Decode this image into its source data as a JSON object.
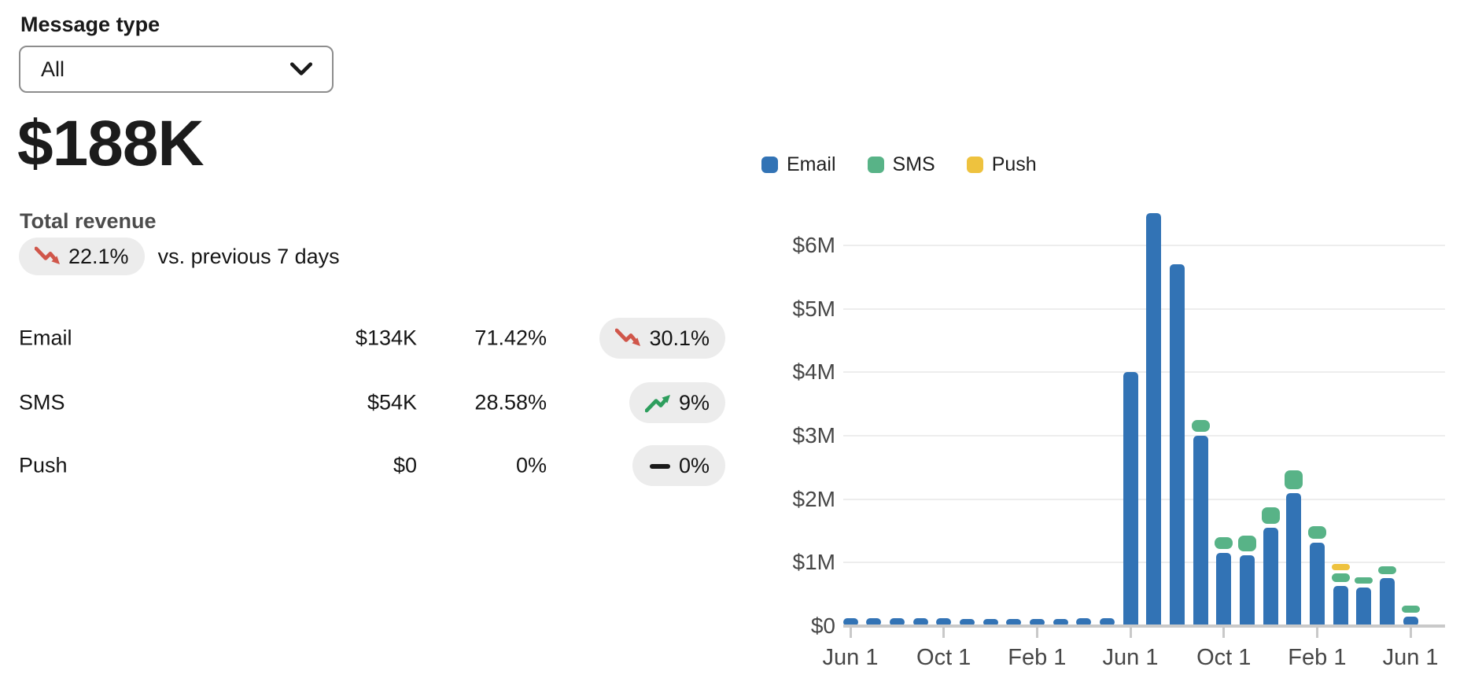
{
  "filter": {
    "label": "Message type",
    "value": "All"
  },
  "summary": {
    "total_value": "$188K",
    "total_label": "Total revenue",
    "change_badge": {
      "value": "22.1%",
      "direction": "down"
    },
    "comparison_text": "vs. previous 7 days"
  },
  "breakdown": {
    "rows": [
      {
        "label": "Email",
        "value": "$134K",
        "share": "71.42%",
        "change": "30.1%",
        "direction": "down"
      },
      {
        "label": "SMS",
        "value": "$54K",
        "share": "28.58%",
        "change": "9%",
        "direction": "up"
      },
      {
        "label": "Push",
        "value": "$0",
        "share": "0%",
        "change": "0%",
        "direction": "flat"
      }
    ]
  },
  "colors": {
    "email_bar": "#3273b5",
    "sms_bar": "#58b387",
    "push_bar": "#eec23e",
    "trend_down": "#d0564a",
    "trend_up": "#2d9e5d",
    "trend_flat": "#1a1a1a",
    "pill_bg": "#ececec",
    "gridline": "#ededed",
    "axis": "#c9c9c9"
  },
  "chart_data": {
    "type": "bar",
    "stacked": true,
    "bar_count": 25,
    "granularity": "monthly",
    "legend": [
      {
        "name": "Email",
        "color": "#3273b5"
      },
      {
        "name": "SMS",
        "color": "#58b387"
      },
      {
        "name": "Push",
        "color": "#eec23e"
      }
    ],
    "y_ticks": [
      "$0",
      "$1M",
      "$2M",
      "$3M",
      "$4M",
      "$5M",
      "$6M"
    ],
    "ylim": [
      0,
      6600000
    ],
    "x_tick_labels": [
      "Jun 1",
      "Oct 1",
      "Feb 1",
      "Jun 1",
      "Oct 1",
      "Feb 1",
      "Jun 1"
    ],
    "x_tick_bar_indices": [
      0,
      4,
      8,
      12,
      16,
      20,
      24
    ],
    "series": [
      {
        "name": "Email",
        "values": [
          120000,
          120000,
          130000,
          120000,
          120000,
          90000,
          110000,
          90000,
          110000,
          110000,
          120000,
          130000,
          4000000,
          6500000,
          5700000,
          3000000,
          1150000,
          1120000,
          1550000,
          2100000,
          1310000,
          630000,
          610000,
          760000,
          150000
        ]
      },
      {
        "name": "SMS",
        "values": [
          0,
          0,
          0,
          0,
          0,
          0,
          0,
          0,
          0,
          0,
          0,
          0,
          0,
          0,
          0,
          250000,
          250000,
          300000,
          320000,
          350000,
          260000,
          200000,
          160000,
          180000,
          170000
        ]
      },
      {
        "name": "Push",
        "values": [
          0,
          0,
          0,
          0,
          0,
          0,
          0,
          0,
          0,
          0,
          0,
          0,
          0,
          0,
          0,
          0,
          0,
          0,
          0,
          0,
          0,
          150000,
          0,
          0,
          0
        ]
      }
    ]
  }
}
